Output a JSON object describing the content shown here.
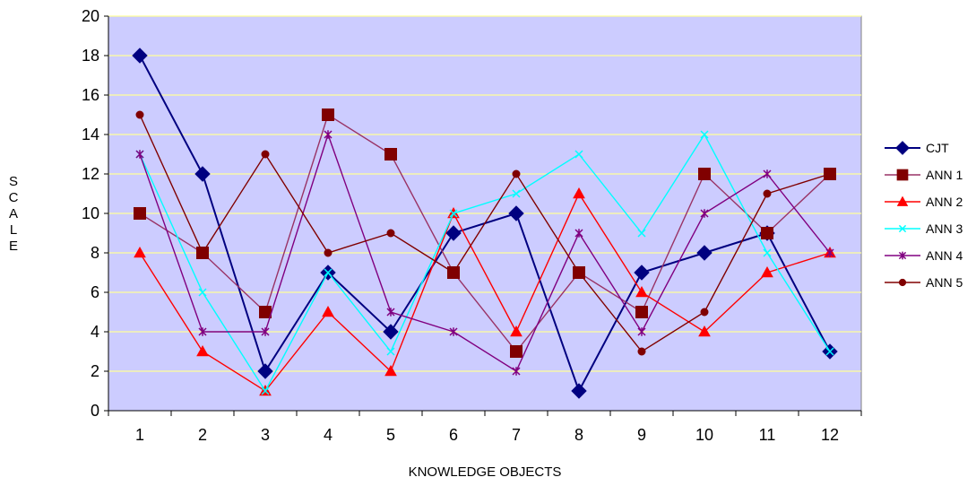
{
  "chart_data": {
    "type": "line",
    "title": "",
    "xlabel": "KNOWLEDGE OBJECTS",
    "ylabel": "SCALE",
    "categories": [
      "1",
      "2",
      "3",
      "4",
      "5",
      "6",
      "7",
      "8",
      "9",
      "10",
      "11",
      "12"
    ],
    "ylim": [
      0,
      20
    ],
    "yticks": [
      "0",
      "2",
      "4",
      "6",
      "8",
      "10",
      "12",
      "14",
      "16",
      "18",
      "20"
    ],
    "grid": "horizontal",
    "legend_position": "right",
    "plot_background": "#ccccff",
    "gridline_color": "#ffff99",
    "series": [
      {
        "name": "CJT",
        "color": "#000080",
        "marker": "diamond",
        "values": [
          18,
          12,
          2,
          7,
          4,
          9,
          10,
          1,
          7,
          8,
          9,
          3
        ]
      },
      {
        "name": "ANN 1",
        "color": "#800000",
        "line_color": "#993366",
        "marker": "square",
        "values": [
          10,
          8,
          5,
          15,
          13,
          7,
          3,
          7,
          5,
          12,
          9,
          12
        ]
      },
      {
        "name": "ANN 2",
        "color": "#ff0000",
        "marker": "triangle",
        "values": [
          8,
          3,
          1,
          5,
          2,
          10,
          4,
          11,
          6,
          4,
          7,
          8
        ]
      },
      {
        "name": "ANN 3",
        "color": "#00ffff",
        "marker": "x",
        "values": [
          13,
          6,
          1,
          7,
          3,
          10,
          11,
          13,
          9,
          14,
          8,
          3
        ]
      },
      {
        "name": "ANN 4",
        "color": "#800080",
        "marker": "star",
        "values": [
          13,
          4,
          4,
          14,
          5,
          4,
          2,
          9,
          4,
          10,
          12,
          8
        ]
      },
      {
        "name": "ANN 5",
        "color": "#800000",
        "marker": "circle",
        "values": [
          15,
          8,
          13,
          8,
          9,
          7,
          12,
          7,
          3,
          5,
          11,
          12
        ]
      }
    ]
  }
}
